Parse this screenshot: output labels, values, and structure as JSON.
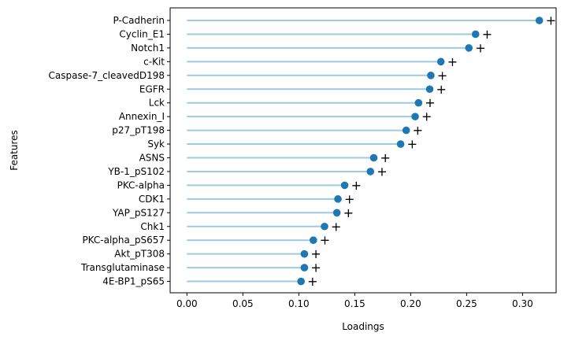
{
  "chart_data": {
    "type": "lollipop",
    "orientation": "horizontal",
    "xlabel": "Loadings",
    "ylabel": "Features",
    "xlim": [
      -0.015,
      0.33
    ],
    "xticks": [
      "0.00",
      "0.05",
      "0.10",
      "0.15",
      "0.20",
      "0.25",
      "0.30"
    ],
    "tick_values": [
      0.0,
      0.05,
      0.1,
      0.15,
      0.2,
      0.25,
      0.3
    ],
    "grid": false,
    "marker_symbol": "+",
    "stem_color": "#9ecae1",
    "dot_color": "#1f77b4",
    "categories": [
      "P-Cadherin",
      "Cyclin_E1",
      "Notch1",
      "c-Kit",
      "Caspase-7_cleavedD198",
      "EGFR",
      "Lck",
      "Annexin_I",
      "p27_pT198",
      "Syk",
      "ASNS",
      "YB-1_pS102",
      "PKC-alpha",
      "CDK1",
      "YAP_pS127",
      "Chk1",
      "PKC-alpha_pS657",
      "Akt_pT308",
      "Transglutaminase",
      "4E-BP1_pS65"
    ],
    "values": [
      0.315,
      0.258,
      0.252,
      0.227,
      0.218,
      0.217,
      0.207,
      0.204,
      0.196,
      0.191,
      0.167,
      0.164,
      0.141,
      0.135,
      0.134,
      0.123,
      0.113,
      0.105,
      0.105,
      0.102
    ]
  }
}
